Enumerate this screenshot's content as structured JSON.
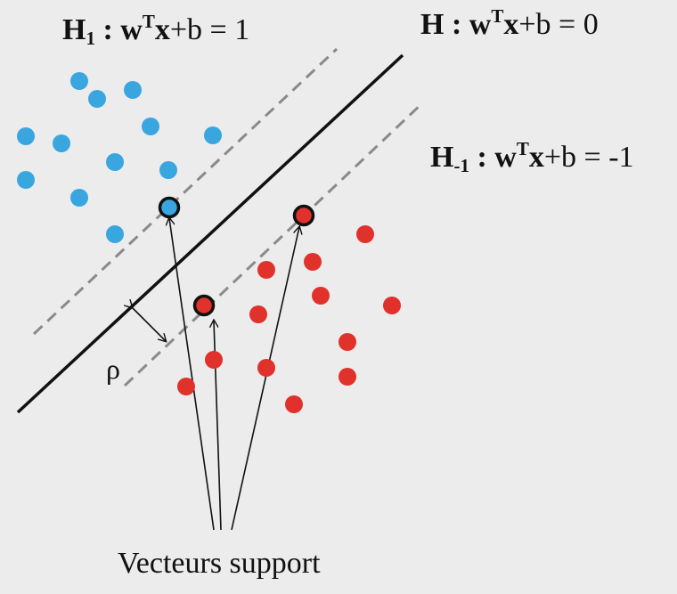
{
  "equations": {
    "h1": {
      "name": "H",
      "sub": "1",
      "w": "w",
      "sup": "T",
      "x": "x",
      "rhs": "+b = 1"
    },
    "h": {
      "name": "H",
      "w": "w",
      "sup": "T",
      "x": "x",
      "rhs": "+b = 0"
    },
    "hm1": {
      "name": "H",
      "sub": "-1",
      "w": "w",
      "sup": "T",
      "x": "x",
      "rhs": "+b = -1"
    }
  },
  "margin_symbol": "ρ",
  "caption": "Vecteurs support",
  "colors": {
    "blue_class": "#3aa6e0",
    "red_class": "#e0312b",
    "hyperplane": "#111111",
    "margin_line": "#8a8a8a",
    "background": "#ececec"
  }
}
